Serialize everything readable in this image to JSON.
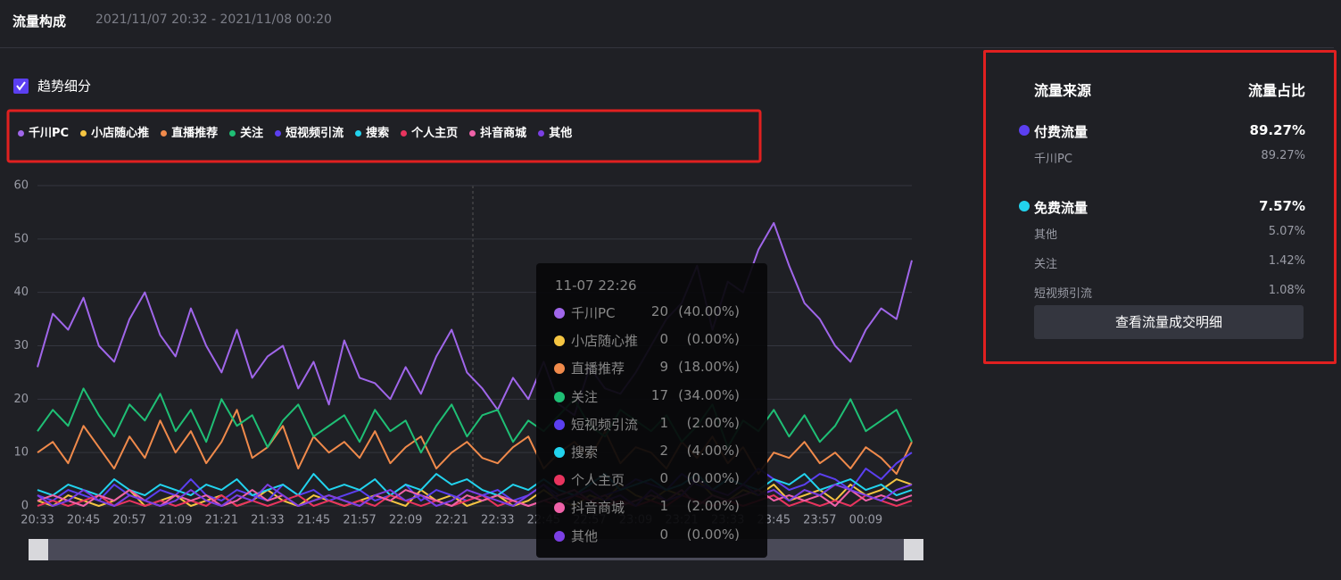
{
  "header": {
    "title": "流量构成",
    "range": "2021/11/07 20:32 - 2021/11/08 00:20"
  },
  "toggle": {
    "label": "趋势细分"
  },
  "chart_data": {
    "type": "line",
    "categories": [
      "20:33",
      null,
      null,
      "20:45",
      null,
      null,
      "20:57",
      null,
      null,
      "21:09",
      null,
      null,
      "21:21",
      null,
      null,
      "21:33",
      null,
      null,
      "21:45",
      null,
      null,
      "21:57",
      null,
      null,
      "22:09",
      null,
      null,
      "22:21",
      null,
      null,
      "22:33",
      null,
      null,
      "22:45",
      null,
      null,
      "22:57",
      null,
      null,
      "23:09",
      null,
      null,
      "23:21",
      null,
      null,
      "23:33",
      null,
      null,
      "23:45",
      null,
      null,
      "23:57",
      null,
      null,
      "00:09",
      null,
      null,
      null
    ],
    "ylim": [
      0,
      60
    ],
    "yticks": [
      0,
      10,
      20,
      30,
      40,
      50,
      60
    ],
    "grid": true,
    "series": [
      {
        "name": "千川PC",
        "color": "#a066ea",
        "values": [
          26,
          36,
          33,
          39,
          30,
          27,
          35,
          40,
          32,
          28,
          37,
          30,
          25,
          33,
          24,
          28,
          30,
          22,
          27,
          19,
          31,
          24,
          23,
          20,
          26,
          21,
          28,
          33,
          25,
          22,
          18,
          24,
          20,
          27,
          19,
          17,
          26,
          22,
          21,
          25,
          30,
          35,
          38,
          45,
          33,
          42,
          40,
          48,
          53,
          45,
          38,
          35,
          30,
          27,
          33,
          37,
          35,
          46
        ]
      },
      {
        "name": "小店随心推",
        "color": "#f5c542",
        "values": [
          1,
          0,
          2,
          1,
          0,
          1,
          3,
          0,
          1,
          2,
          0,
          1,
          2,
          0,
          1,
          3,
          1,
          0,
          2,
          1,
          0,
          1,
          2,
          1,
          0,
          3,
          1,
          2,
          0,
          1,
          2,
          0,
          1,
          3,
          1,
          0,
          2,
          1,
          4,
          2,
          1,
          3,
          2,
          5,
          2,
          1,
          3,
          2,
          4,
          1,
          2,
          3,
          1,
          4,
          2,
          3,
          5,
          4
        ]
      },
      {
        "name": "直播推荐",
        "color": "#f08a4b",
        "values": [
          10,
          12,
          8,
          15,
          11,
          7,
          13,
          9,
          16,
          10,
          14,
          8,
          12,
          18,
          9,
          11,
          15,
          7,
          13,
          10,
          12,
          9,
          14,
          8,
          11,
          13,
          7,
          10,
          12,
          9,
          8,
          11,
          13,
          7,
          10,
          12,
          9,
          14,
          8,
          11,
          10,
          7,
          12,
          9,
          13,
          8,
          11,
          6,
          10,
          9,
          12,
          8,
          10,
          7,
          11,
          9,
          6,
          12
        ]
      },
      {
        "name": "关注",
        "color": "#1fbf75",
        "values": [
          14,
          18,
          15,
          22,
          17,
          13,
          19,
          16,
          21,
          14,
          18,
          12,
          20,
          15,
          17,
          11,
          16,
          19,
          13,
          15,
          17,
          12,
          18,
          14,
          16,
          10,
          15,
          19,
          13,
          17,
          18,
          12,
          16,
          14,
          17,
          20,
          15,
          13,
          18,
          16,
          14,
          17,
          12,
          15,
          19,
          11,
          16,
          14,
          18,
          13,
          17,
          12,
          15,
          20,
          14,
          16,
          18,
          12
        ]
      },
      {
        "name": "短视频引流",
        "color": "#5b3ff0",
        "values": [
          2,
          1,
          3,
          2,
          1,
          4,
          2,
          1,
          3,
          2,
          5,
          2,
          1,
          3,
          2,
          1,
          4,
          2,
          3,
          1,
          2,
          3,
          1,
          2,
          4,
          1,
          3,
          2,
          1,
          2,
          3,
          1,
          2,
          4,
          2,
          3,
          1,
          2,
          3,
          5,
          4,
          3,
          6,
          4,
          3,
          5,
          4,
          7,
          5,
          3,
          4,
          6,
          5,
          3,
          7,
          5,
          8,
          10
        ]
      },
      {
        "name": "搜索",
        "color": "#22d3ee",
        "values": [
          3,
          2,
          4,
          3,
          2,
          5,
          3,
          2,
          4,
          3,
          2,
          4,
          3,
          5,
          2,
          3,
          4,
          2,
          6,
          3,
          4,
          3,
          5,
          2,
          4,
          3,
          6,
          4,
          5,
          3,
          2,
          4,
          3,
          5,
          3,
          2,
          4,
          6,
          3,
          4,
          5,
          3,
          4,
          6,
          3,
          5,
          4,
          3,
          5,
          4,
          6,
          3,
          4,
          5,
          3,
          4,
          2,
          3
        ]
      },
      {
        "name": "个人主页",
        "color": "#e8345e",
        "values": [
          0,
          1,
          0,
          1,
          2,
          0,
          1,
          0,
          1,
          0,
          1,
          0,
          2,
          0,
          1,
          0,
          1,
          2,
          0,
          1,
          0,
          1,
          0,
          2,
          1,
          0,
          1,
          0,
          1,
          2,
          0,
          1,
          0,
          1,
          0,
          2,
          1,
          0,
          1,
          0,
          1,
          0,
          2,
          1,
          0,
          1,
          0,
          1,
          2,
          0,
          1,
          0,
          1,
          0,
          2,
          1,
          0,
          1
        ]
      },
      {
        "name": "抖音商城",
        "color": "#f062a8",
        "values": [
          1,
          2,
          1,
          0,
          2,
          1,
          3,
          1,
          0,
          2,
          1,
          2,
          0,
          1,
          3,
          1,
          2,
          0,
          1,
          2,
          1,
          0,
          2,
          1,
          3,
          2,
          1,
          0,
          2,
          1,
          2,
          1,
          0,
          1,
          2,
          3,
          1,
          2,
          0,
          1,
          2,
          1,
          3,
          0,
          2,
          1,
          2,
          3,
          1,
          2,
          1,
          2,
          0,
          3,
          1,
          2,
          1,
          2
        ]
      },
      {
        "name": "其他",
        "color": "#7b3fe4",
        "values": [
          2,
          0,
          1,
          3,
          1,
          0,
          2,
          1,
          0,
          1,
          3,
          1,
          0,
          2,
          1,
          4,
          2,
          0,
          1,
          2,
          1,
          0,
          2,
          3,
          1,
          2,
          0,
          1,
          3,
          2,
          1,
          0,
          2,
          4,
          1,
          2,
          3,
          1,
          2,
          0,
          3,
          1,
          2,
          5,
          3,
          2,
          4,
          2,
          3,
          1,
          3,
          2,
          4,
          3,
          2,
          1,
          3,
          4
        ]
      }
    ],
    "tooltip": {
      "time": "11-07 22:26",
      "rows": [
        {
          "value": 20,
          "share": "(40.00%)"
        },
        {
          "value": 0,
          "share": "(0.00%)"
        },
        {
          "value": 9,
          "share": "(18.00%)"
        },
        {
          "value": 17,
          "share": "(34.00%)"
        },
        {
          "value": 1,
          "share": "(2.00%)"
        },
        {
          "value": 2,
          "share": "(4.00%)"
        },
        {
          "value": 0,
          "share": "(0.00%)"
        },
        {
          "value": 1,
          "share": "(2.00%)"
        },
        {
          "value": 0,
          "share": "(0.00%)"
        }
      ]
    }
  },
  "panel": {
    "col_source": "流量来源",
    "col_share": "流量占比",
    "groups": [
      {
        "name": "付费流量",
        "share": "89.27%",
        "color": "#5b3ff0",
        "items": [
          {
            "name": "千川PC",
            "share": "89.27%"
          }
        ]
      },
      {
        "name": "免费流量",
        "share": "7.57%",
        "color": "#22d3ee",
        "items": [
          {
            "name": "其他",
            "share": "5.07%"
          },
          {
            "name": "关注",
            "share": "1.42%"
          },
          {
            "name": "短视频引流",
            "share": "1.08%"
          }
        ]
      }
    ],
    "button": "查看流量成交明细"
  }
}
